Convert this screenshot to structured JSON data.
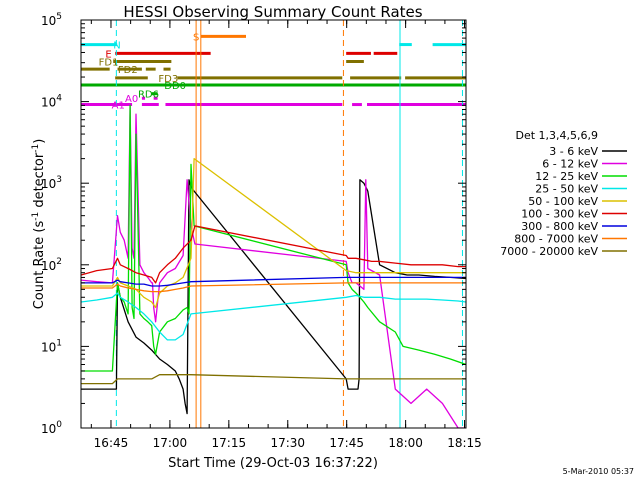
{
  "chart_data": {
    "type": "line",
    "title": "HESSI Observing Summary Count Rates",
    "xlabel": "Start Time (29-Oct-03 16:37:22)",
    "ylabel_main": "Count Rate (s",
    "ylabel_sup1": "-1",
    "ylabel_mid": " detector",
    "ylabel_sup2": "-1",
    "ylabel_end": ")",
    "footer": "5-Mar-2010 05:37",
    "x_unit": "minutes since 16:37:22",
    "xlim": [
      0,
      98
    ],
    "ylim": [
      1,
      100000
    ],
    "yscale": "log",
    "x_ticks": [
      {
        "label": "16:45",
        "value": 7.63
      },
      {
        "label": "17:00",
        "value": 22.63
      },
      {
        "label": "17:15",
        "value": 37.63
      },
      {
        "label": "17:30",
        "value": 52.63
      },
      {
        "label": "17:45",
        "value": 67.63
      },
      {
        "label": "18:00",
        "value": 82.63
      },
      {
        "label": "18:15",
        "value": 97.63
      }
    ],
    "y_ticks": [
      {
        "base": "10",
        "exp": "0",
        "value": 1
      },
      {
        "base": "10",
        "exp": "1",
        "value": 10
      },
      {
        "base": "10",
        "exp": "2",
        "value": 100
      },
      {
        "base": "10",
        "exp": "3",
        "value": 1000
      },
      {
        "base": "10",
        "exp": "4",
        "value": 10000
      },
      {
        "base": "10",
        "exp": "5",
        "value": 100000
      }
    ],
    "legend": {
      "header": "Det 1,3,4,5,6,9",
      "position": "right",
      "entries": [
        {
          "label": "3 - 6 keV",
          "color": "#000000"
        },
        {
          "label": "6 - 12 keV",
          "color": "#e000e0"
        },
        {
          "label": "12 - 25 keV",
          "color": "#00dd00"
        },
        {
          "label": "25 - 50 keV",
          "color": "#00e8e8"
        },
        {
          "label": "50 - 100 keV",
          "color": "#dcc000"
        },
        {
          "label": "100 - 300 keV",
          "color": "#dd0000"
        },
        {
          "label": "300 - 800 keV",
          "color": "#0000dd"
        },
        {
          "label": "800 - 7000 keV",
          "color": "#ff7700"
        },
        {
          "label": "7000 - 20000 keV",
          "color": "#807000"
        }
      ]
    },
    "flags": [
      {
        "label": "N",
        "color": "#00e8e8",
        "y": 50000,
        "label_x": 8.2,
        "segments": [
          [
            0,
            9.2
          ],
          [
            81,
            84.2
          ],
          [
            89.5,
            98
          ]
        ]
      },
      {
        "label": "E",
        "color": "#dd0000",
        "y": 39000,
        "label_x": 6.2,
        "segments": [
          [
            8.7,
            33
          ],
          [
            67.5,
            73.8
          ],
          [
            74.5,
            80.5
          ]
        ]
      },
      {
        "label": "FD1",
        "color": "#807000",
        "y": 31000,
        "label_x": 4.5,
        "segments": [
          [
            8.2,
            23
          ],
          [
            67.5,
            72
          ]
        ]
      },
      {
        "label": "FD2",
        "color": "#807000",
        "y": 25000,
        "label_x": 9.4,
        "segments": [
          [
            0,
            7.3
          ],
          [
            9.3,
            15.5
          ],
          [
            16.5,
            19
          ],
          [
            21,
            22.8
          ]
        ]
      },
      {
        "label": "FD3",
        "color": "#807000",
        "y": 19500,
        "label_x": 19.7,
        "segments": [
          [
            8.7,
            17
          ],
          [
            24.5,
            66.5
          ],
          [
            68.5,
            81.5
          ],
          [
            82.5,
            98
          ]
        ]
      },
      {
        "label": "DD0",
        "color": "#00aa00",
        "y": 16000,
        "label_x": 21.2,
        "segments": [
          [
            0,
            98
          ]
        ]
      },
      {
        "label": "RD6",
        "color": "#00aa00",
        "y": 12500,
        "label_x": 14.5,
        "segments": [
          [
            18,
            19.5
          ]
        ]
      },
      {
        "label": "A0",
        "color": "#e000e0",
        "y": 11000,
        "label_x": 11.2,
        "segments": [
          [
            15.5,
            16.3
          ],
          [
            18.5,
            19.5
          ]
        ]
      },
      {
        "label": "A1",
        "color": "#e000e0",
        "y": 9200,
        "label_x": 7.8,
        "segments": [
          [
            0,
            13
          ],
          [
            15.5,
            19.8
          ],
          [
            21.5,
            66.5
          ],
          [
            69,
            71.5
          ],
          [
            72.8,
            98
          ]
        ]
      },
      {
        "label": "S",
        "color": "#ff7700",
        "y": 63000,
        "label_x": 28.5,
        "segments": [
          [
            30.5,
            42
          ]
        ]
      }
    ],
    "vertical_markers": [
      {
        "x": 9.0,
        "color": "#00e8e8",
        "style": "dashed"
      },
      {
        "x": 29.3,
        "color": "#ff7700",
        "style": "solid"
      },
      {
        "x": 30.5,
        "color": "#ff7700",
        "style": "solid"
      },
      {
        "x": 66.8,
        "color": "#ff7700",
        "style": "dashed"
      },
      {
        "x": 81.2,
        "color": "#00e8e8",
        "style": "solid"
      },
      {
        "x": 97.1,
        "color": "#00e8e8",
        "style": "dashed"
      }
    ],
    "series": [
      {
        "name": "3 - 6 keV",
        "color": "#000000",
        "x": [
          0,
          4,
          8,
          9,
          9.3,
          10,
          12,
          14,
          16,
          18,
          20,
          22,
          24,
          25,
          26,
          26.5,
          27,
          27.5,
          28,
          28.8,
          67.5,
          68,
          69,
          70.5,
          70.8,
          71,
          72,
          72.5,
          73,
          76,
          80,
          83,
          86,
          90,
          94,
          98
        ],
        "y": [
          3,
          3,
          3,
          3,
          60,
          40,
          20,
          13,
          11,
          9,
          7,
          6,
          5,
          4,
          3,
          2,
          1.5,
          1100,
          900,
          800,
          4,
          3,
          3,
          3,
          4,
          1100,
          1000,
          900,
          800,
          100,
          80,
          75,
          75,
          72,
          70,
          68
        ]
      },
      {
        "name": "6 - 12 keV",
        "color": "#e000e0",
        "x": [
          0,
          4,
          8,
          9.3,
          10,
          11,
          12,
          12.5,
          13,
          13.5,
          14,
          15,
          16,
          17,
          18,
          18.2,
          18.5,
          19,
          20,
          22,
          24,
          26,
          27,
          28,
          29,
          67.5,
          68,
          69,
          70,
          71,
          72,
          72.5,
          73,
          76,
          80,
          84,
          88,
          92,
          96,
          98
        ],
        "y": [
          65,
          62,
          60,
          400,
          250,
          200,
          120,
          9000,
          160,
          120,
          7000,
          100,
          80,
          70,
          60,
          60,
          30,
          20,
          60,
          80,
          90,
          130,
          1100,
          300,
          180,
          110,
          80,
          60,
          60,
          55,
          50,
          1100,
          90,
          75,
          3,
          2,
          3,
          2,
          1,
          1
        ]
      },
      {
        "name": "12 - 25 keV",
        "color": "#00dd00",
        "x": [
          0,
          4,
          8,
          9.3,
          10,
          11,
          12,
          12.5,
          13,
          13.5,
          14,
          15,
          16,
          17,
          18,
          18.5,
          19,
          20,
          22,
          24,
          26,
          27,
          27.5,
          28,
          28.8,
          67.5,
          68,
          69,
          70,
          71,
          72,
          73,
          76,
          80,
          82,
          86,
          90,
          94,
          98
        ],
        "y": [
          5,
          5,
          5,
          60,
          40,
          35,
          25,
          9000,
          30,
          22,
          4000,
          25,
          22,
          20,
          18,
          10,
          8,
          15,
          20,
          22,
          28,
          30,
          25,
          1700,
          300,
          100,
          60,
          50,
          45,
          40,
          35,
          30,
          20,
          15,
          10,
          9,
          8,
          7,
          6
        ]
      },
      {
        "name": "25 - 50 keV",
        "color": "#00e8e8",
        "x": [
          0,
          4,
          8,
          9.3,
          10,
          12,
          14,
          16,
          18,
          20,
          22,
          24,
          26,
          28,
          67.5,
          70,
          72,
          74,
          76,
          80,
          84,
          88,
          92,
          96,
          98
        ],
        "y": [
          35,
          37,
          40,
          45,
          40,
          35,
          30,
          25,
          20,
          15,
          12,
          12,
          14,
          25,
          40,
          42,
          40,
          40,
          40,
          38,
          38,
          38,
          37,
          36,
          35
        ]
      },
      {
        "name": "50 - 100 keV",
        "color": "#dcc000",
        "x": [
          0,
          4,
          8,
          9.3,
          10,
          12,
          14,
          16,
          18,
          19,
          20,
          22,
          24,
          26,
          28,
          28.8,
          67.5,
          70,
          72,
          74,
          76,
          80,
          84,
          88,
          92,
          96,
          98
        ],
        "y": [
          55,
          55,
          55,
          70,
          60,
          55,
          50,
          40,
          35,
          30,
          45,
          55,
          60,
          70,
          120,
          2000,
          85,
          80,
          80,
          80,
          80,
          80,
          80,
          80,
          80,
          80,
          80
        ]
      },
      {
        "name": "100 - 300 keV",
        "color": "#dd0000",
        "x": [
          0,
          4,
          8,
          9.3,
          10,
          12,
          14,
          16,
          18,
          19,
          20,
          22,
          24,
          26,
          28,
          29,
          67.5,
          68,
          70,
          72,
          74,
          76,
          80,
          84,
          88,
          92,
          96,
          98
        ],
        "y": [
          75,
          85,
          90,
          120,
          100,
          90,
          80,
          75,
          70,
          60,
          80,
          100,
          120,
          160,
          200,
          300,
          130,
          120,
          120,
          115,
          110,
          110,
          105,
          100,
          100,
          100,
          95,
          95
        ]
      },
      {
        "name": "300 - 800 keV",
        "color": "#0000dd",
        "x": [
          0,
          4,
          8,
          9.3,
          10,
          12,
          14,
          16,
          18,
          20,
          22,
          24,
          26,
          28,
          67.5,
          70,
          72,
          76,
          80,
          84,
          88,
          92,
          96,
          98
        ],
        "y": [
          60,
          60,
          60,
          65,
          62,
          60,
          58,
          58,
          55,
          55,
          56,
          58,
          60,
          62,
          70,
          70,
          70,
          70,
          70,
          70,
          70,
          70,
          70,
          70
        ]
      },
      {
        "name": "800 - 7000 keV",
        "color": "#ff7700",
        "x": [
          0,
          4,
          8,
          9.3,
          10,
          12,
          14,
          16,
          18,
          20,
          22,
          24,
          26,
          28,
          67.5,
          70,
          72,
          76,
          80,
          84,
          88,
          92,
          96,
          98
        ],
        "y": [
          52,
          52,
          52,
          58,
          55,
          52,
          50,
          48,
          47,
          47,
          48,
          50,
          52,
          55,
          60,
          60,
          60,
          60,
          60,
          60,
          60,
          60,
          60,
          60
        ]
      },
      {
        "name": "7000 - 20000 keV",
        "color": "#807000",
        "x": [
          0,
          4,
          8,
          9.3,
          12,
          16,
          18,
          20,
          22,
          24,
          26,
          28,
          67.5,
          72,
          76,
          80,
          84,
          88,
          92,
          96,
          98
        ],
        "y": [
          3.5,
          3.5,
          3.5,
          4,
          4,
          4,
          4,
          4.5,
          4.5,
          4.5,
          4.5,
          4.5,
          4,
          4,
          4,
          4,
          4,
          4,
          4,
          4,
          4
        ]
      }
    ]
  }
}
